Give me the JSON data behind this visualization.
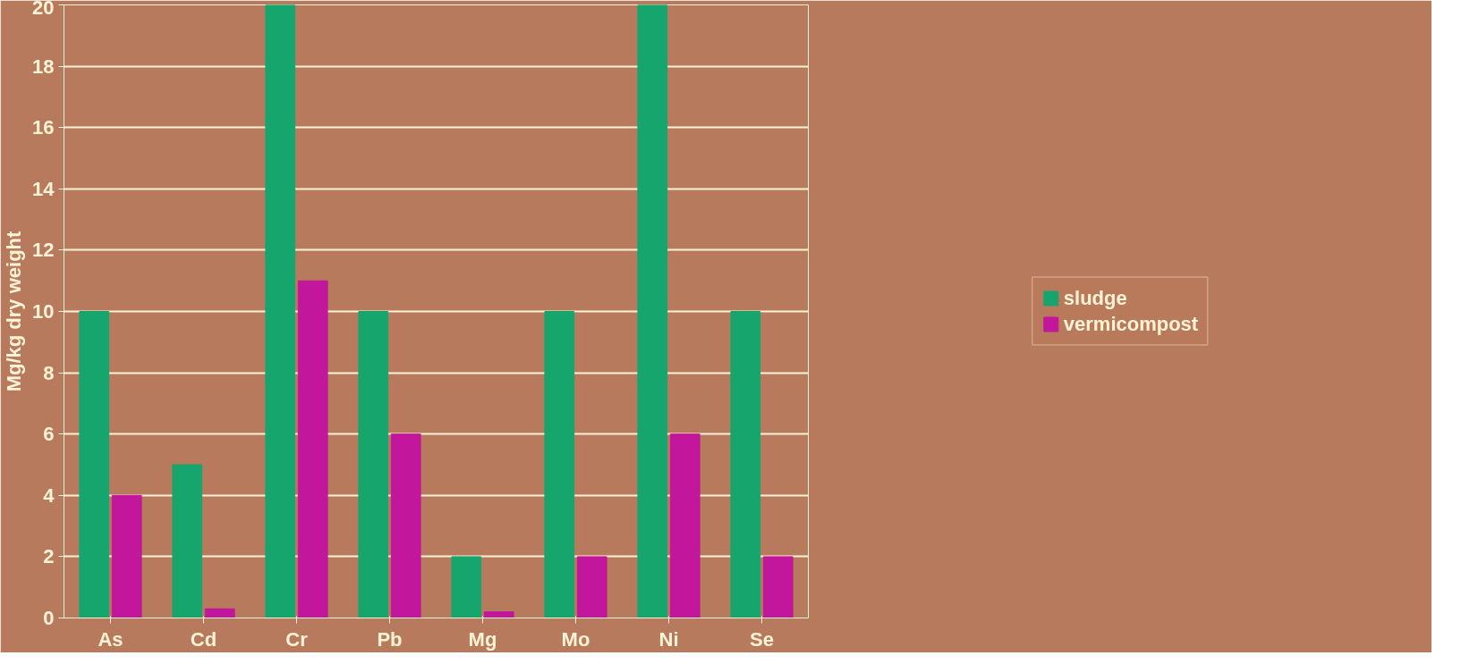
{
  "chart_data": {
    "type": "bar",
    "ylabel": "Mg/kg dry weight",
    "categories": [
      "As",
      "Cd",
      "Cr",
      "Pb",
      "Mg",
      "Mo",
      "Ni",
      "Se"
    ],
    "series": [
      {
        "name": "sludge",
        "color": "#17a56e",
        "values": [
          10,
          5,
          20,
          10,
          2,
          10,
          20,
          10
        ]
      },
      {
        "name": "vermicompost",
        "color": "#c2169c",
        "values": [
          4,
          0.3,
          11,
          6,
          0.2,
          2,
          6,
          2
        ]
      }
    ],
    "ylim": [
      0,
      20
    ],
    "yticks": [
      0,
      2,
      4,
      6,
      8,
      10,
      12,
      14,
      16,
      18,
      20
    ],
    "grid": "y",
    "legend": "right"
  }
}
